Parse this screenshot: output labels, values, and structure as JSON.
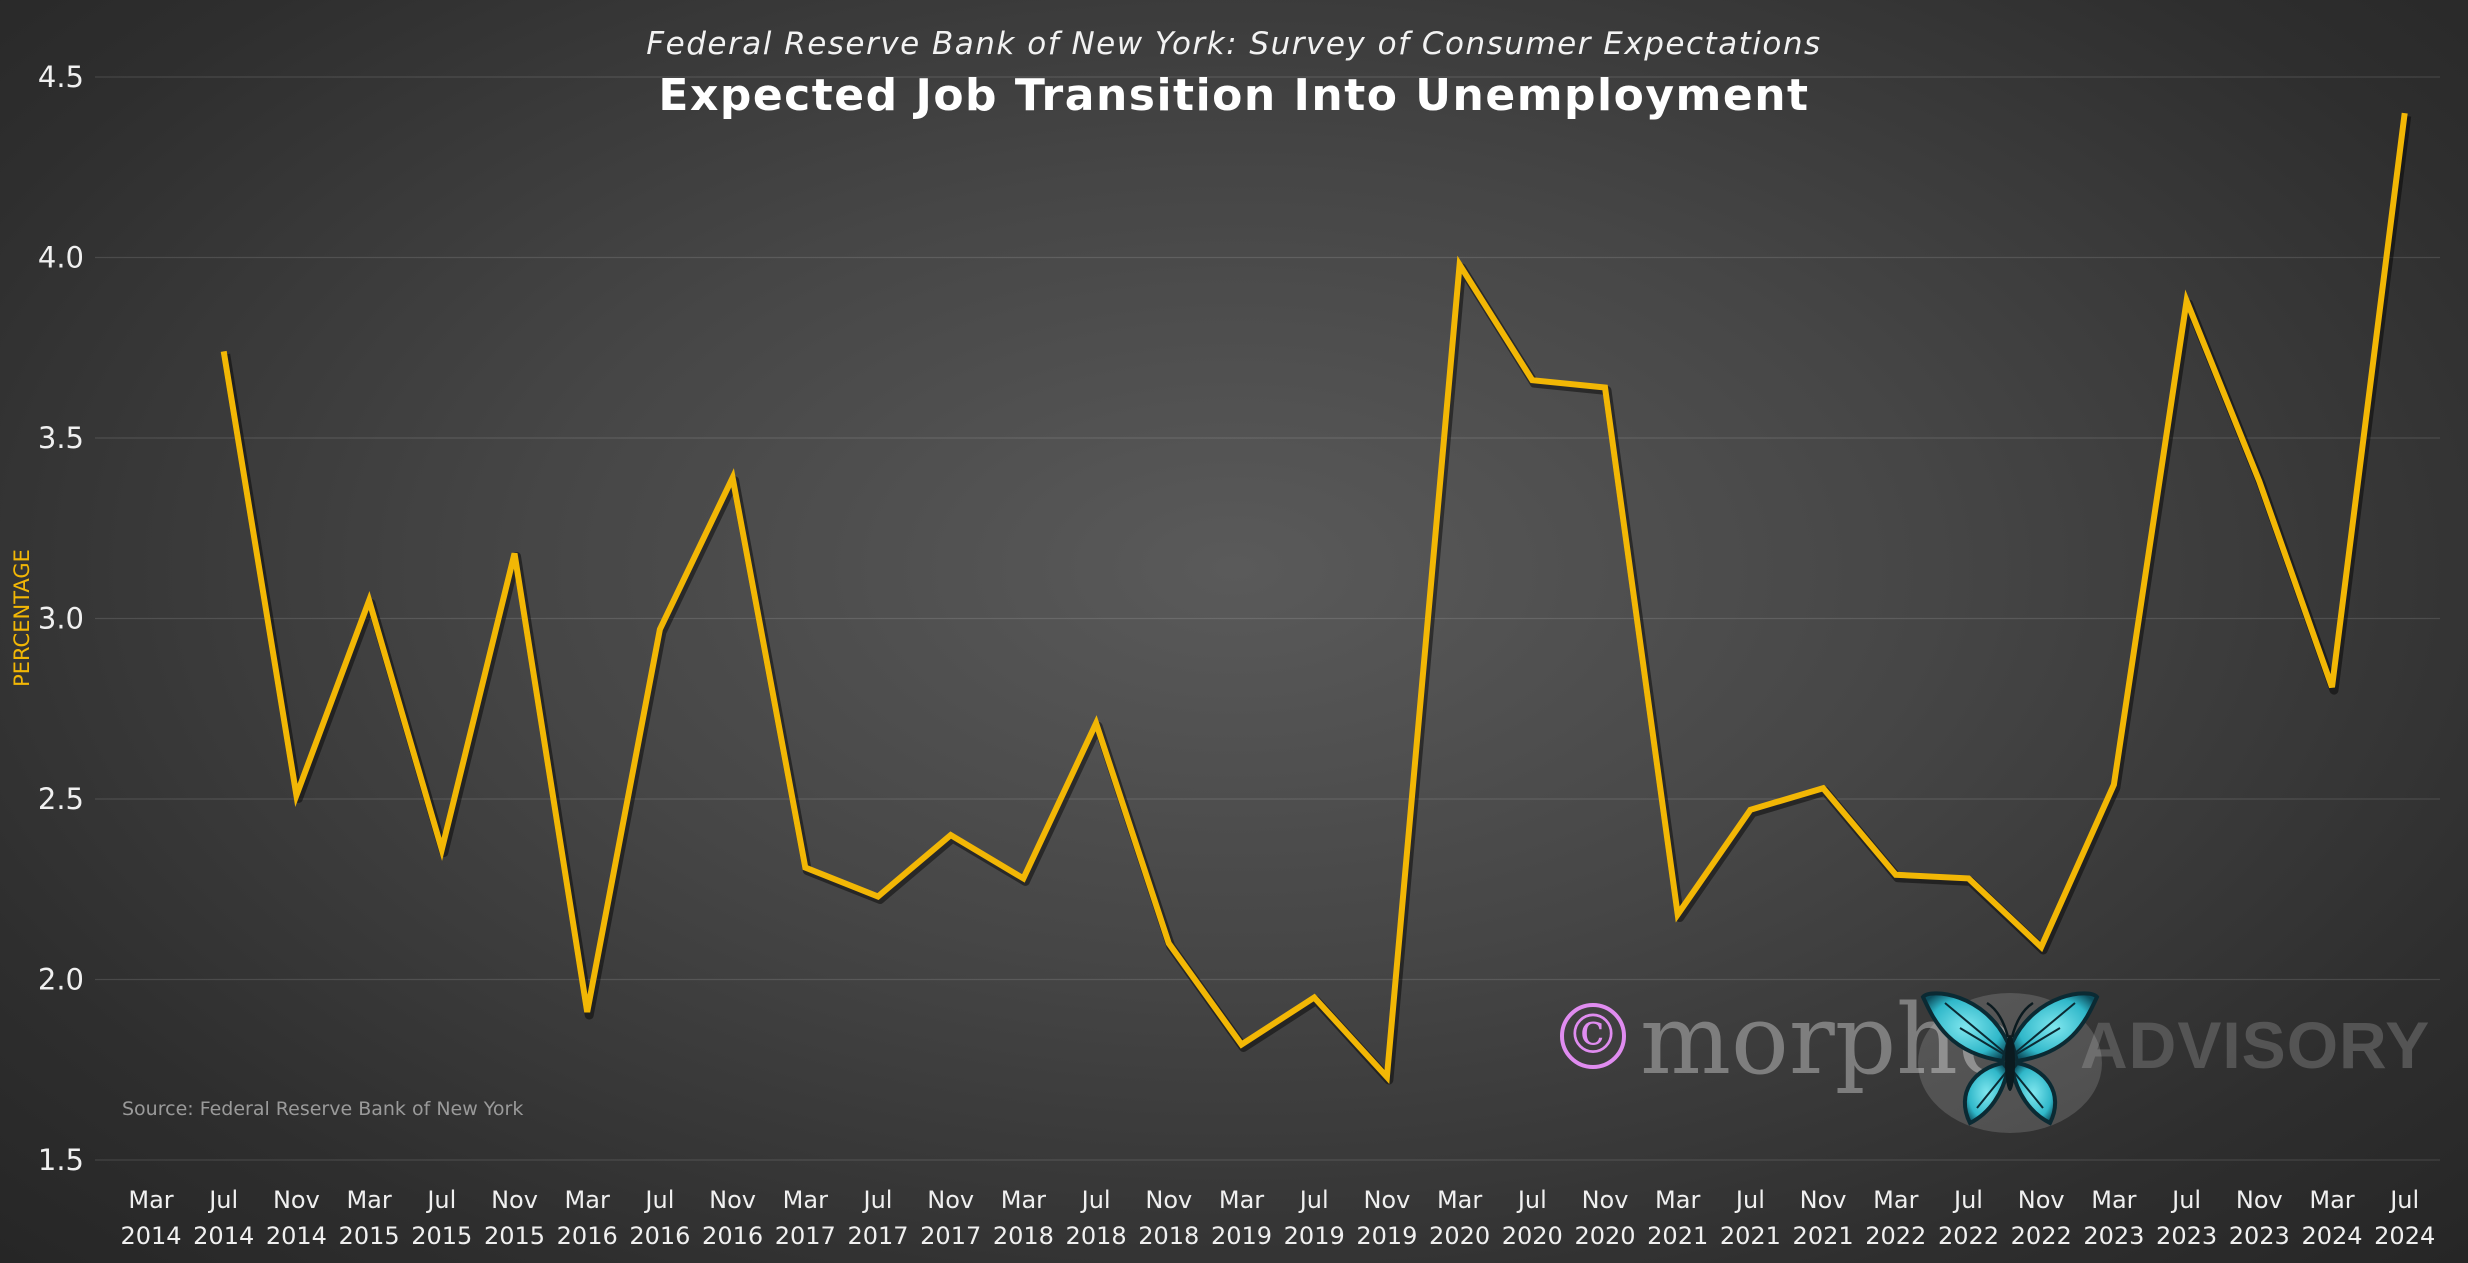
{
  "chart_data": {
    "type": "line",
    "subtitle": "Federal Reserve Bank of New York: Survey of Consumer Expectations",
    "title": "Expected Job Transition Into Unemployment",
    "ylabel": "PERCENTAGE",
    "source": "Source: Federal Reserve Bank of New York",
    "ylim": [
      1.5,
      4.5
    ],
    "yticks": [
      "1.5",
      "2.0",
      "2.5",
      "3.0",
      "3.5",
      "4.0",
      "4.5"
    ],
    "grid": true,
    "categories": [
      [
        "Mar",
        "2014"
      ],
      [
        "Jul",
        "2014"
      ],
      [
        "Nov",
        "2014"
      ],
      [
        "Mar",
        "2015"
      ],
      [
        "Jul",
        "2015"
      ],
      [
        "Nov",
        "2015"
      ],
      [
        "Mar",
        "2016"
      ],
      [
        "Jul",
        "2016"
      ],
      [
        "Nov",
        "2016"
      ],
      [
        "Mar",
        "2017"
      ],
      [
        "Jul",
        "2017"
      ],
      [
        "Nov",
        "2017"
      ],
      [
        "Mar",
        "2018"
      ],
      [
        "Jul",
        "2018"
      ],
      [
        "Nov",
        "2018"
      ],
      [
        "Mar",
        "2019"
      ],
      [
        "Jul",
        "2019"
      ],
      [
        "Nov",
        "2019"
      ],
      [
        "Mar",
        "2020"
      ],
      [
        "Jul",
        "2020"
      ],
      [
        "Nov",
        "2020"
      ],
      [
        "Mar",
        "2021"
      ],
      [
        "Jul",
        "2021"
      ],
      [
        "Nov",
        "2021"
      ],
      [
        "Mar",
        "2022"
      ],
      [
        "Jul",
        "2022"
      ],
      [
        "Nov",
        "2022"
      ],
      [
        "Mar",
        "2023"
      ],
      [
        "Jul",
        "2023"
      ],
      [
        "Nov",
        "2023"
      ],
      [
        "Mar",
        "2024"
      ],
      [
        "Jul",
        "2024"
      ]
    ],
    "series": [
      {
        "color": "#f2b705",
        "values": [
          null,
          3.74,
          2.51,
          3.05,
          2.36,
          3.18,
          1.91,
          2.97,
          3.39,
          2.31,
          2.23,
          2.4,
          2.28,
          2.71,
          2.1,
          1.82,
          1.95,
          1.73,
          3.98,
          3.66,
          3.64,
          2.18,
          2.47,
          2.53,
          2.29,
          2.28,
          2.09,
          2.54,
          3.88,
          3.38,
          2.81,
          4.4
        ]
      }
    ]
  },
  "watermark": {
    "copyright": "©",
    "brand": "morpho",
    "suffix": "ADVISORY",
    "icon": "butterfly-icon"
  }
}
